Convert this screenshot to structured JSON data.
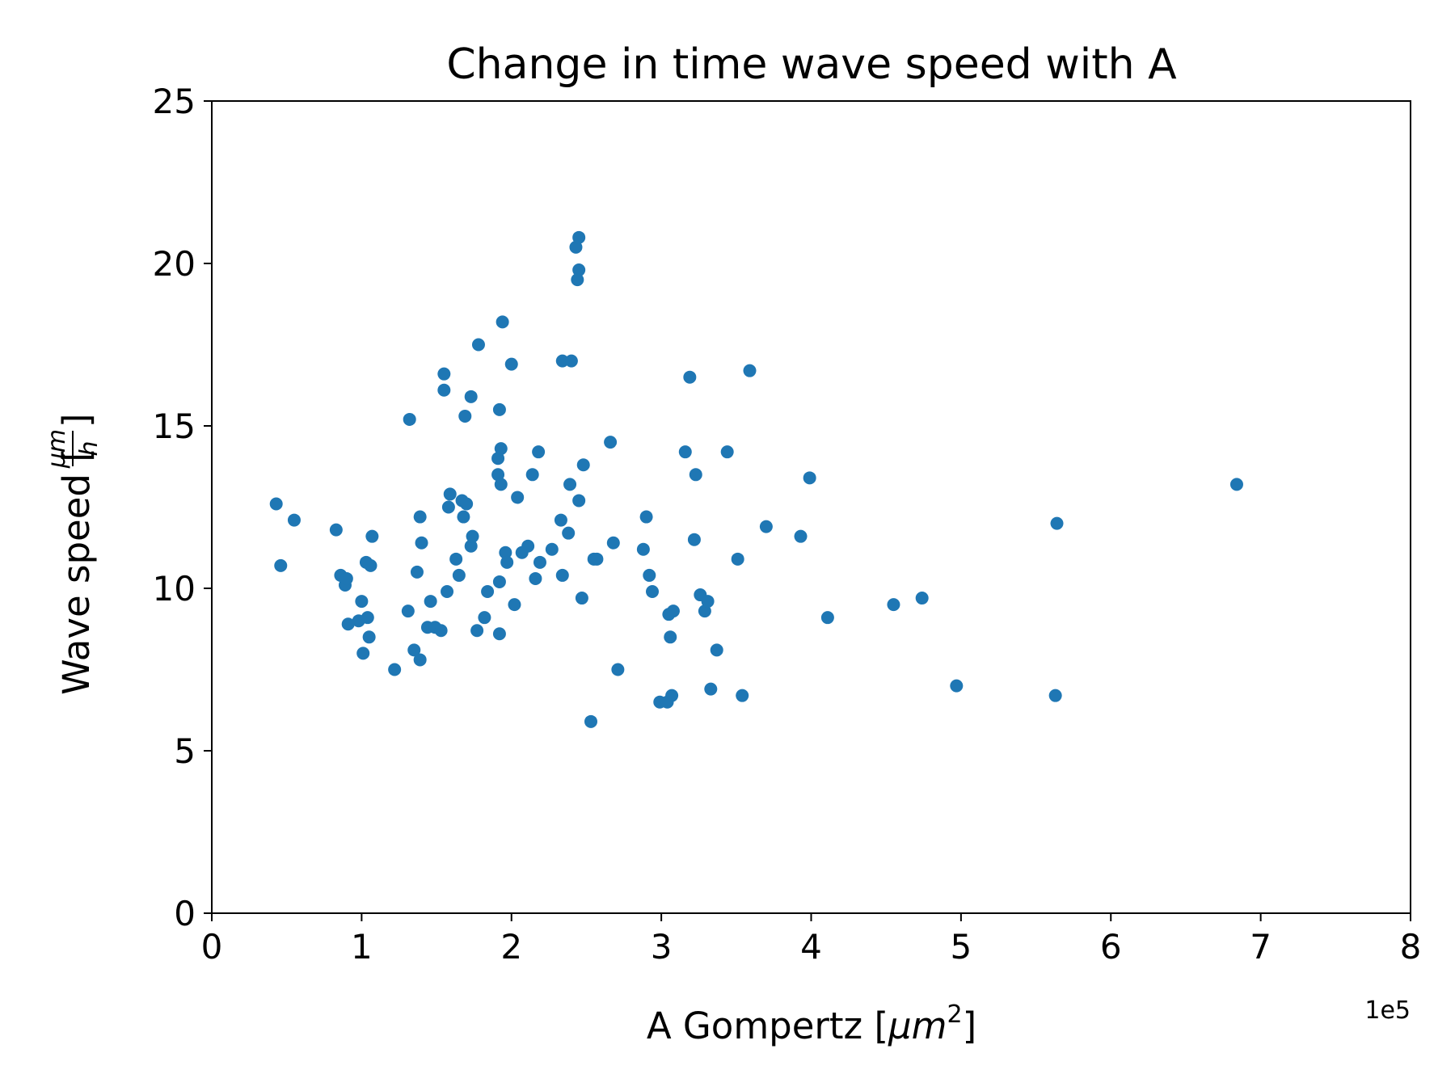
{
  "chart_data": {
    "type": "scatter",
    "title": "Change in time wave speed with A",
    "xlabel": "A Gompertz [μm²]",
    "ylabel": "Wave speed [μm/h]",
    "x_offset_label": "1e5",
    "xlim": [
      0,
      800000
    ],
    "ylim": [
      0,
      25
    ],
    "xticks": [
      0,
      100000,
      200000,
      300000,
      400000,
      500000,
      600000,
      700000,
      800000
    ],
    "xtick_labels": [
      "0",
      "1",
      "2",
      "3",
      "4",
      "5",
      "6",
      "7",
      "8"
    ],
    "yticks": [
      0,
      5,
      10,
      15,
      20,
      25
    ],
    "ytick_labels": [
      "0",
      "5",
      "10",
      "15",
      "20",
      "25"
    ],
    "grid": false,
    "color": "#1f77b4",
    "series": [
      {
        "points": [
          [
            43000,
            12.6
          ],
          [
            46000,
            10.7
          ],
          [
            55000,
            12.1
          ],
          [
            83000,
            11.8
          ],
          [
            86000,
            10.4
          ],
          [
            89000,
            10.1
          ],
          [
            90000,
            10.3
          ],
          [
            91000,
            8.9
          ],
          [
            98000,
            9.0
          ],
          [
            100000,
            9.6
          ],
          [
            101000,
            8.0
          ],
          [
            103000,
            10.8
          ],
          [
            104000,
            9.1
          ],
          [
            105000,
            8.5
          ],
          [
            106000,
            10.7
          ],
          [
            107000,
            11.6
          ],
          [
            122000,
            7.5
          ],
          [
            131000,
            9.3
          ],
          [
            132000,
            15.2
          ],
          [
            135000,
            8.1
          ],
          [
            137000,
            10.5
          ],
          [
            139000,
            7.8
          ],
          [
            139000,
            12.2
          ],
          [
            140000,
            11.4
          ],
          [
            144000,
            8.8
          ],
          [
            146000,
            9.6
          ],
          [
            149000,
            8.8
          ],
          [
            153000,
            8.7
          ],
          [
            155000,
            16.1
          ],
          [
            155000,
            16.6
          ],
          [
            157000,
            9.9
          ],
          [
            158000,
            12.5
          ],
          [
            159000,
            12.9
          ],
          [
            163000,
            10.9
          ],
          [
            165000,
            10.4
          ],
          [
            167000,
            12.7
          ],
          [
            168000,
            12.2
          ],
          [
            169000,
            15.3
          ],
          [
            170000,
            12.6
          ],
          [
            173000,
            15.9
          ],
          [
            173000,
            11.3
          ],
          [
            174000,
            11.6
          ],
          [
            177000,
            8.7
          ],
          [
            178000,
            17.5
          ],
          [
            182000,
            9.1
          ],
          [
            184000,
            9.9
          ],
          [
            191000,
            14.0
          ],
          [
            191000,
            13.5
          ],
          [
            192000,
            8.6
          ],
          [
            192000,
            10.2
          ],
          [
            192000,
            15.5
          ],
          [
            193000,
            14.3
          ],
          [
            193000,
            13.2
          ],
          [
            194000,
            18.2
          ],
          [
            196000,
            11.1
          ],
          [
            197000,
            10.8
          ],
          [
            200000,
            16.9
          ],
          [
            202000,
            9.5
          ],
          [
            204000,
            12.8
          ],
          [
            207000,
            11.1
          ],
          [
            211000,
            11.3
          ],
          [
            214000,
            13.5
          ],
          [
            216000,
            10.3
          ],
          [
            218000,
            14.2
          ],
          [
            219000,
            10.8
          ],
          [
            227000,
            11.2
          ],
          [
            233000,
            12.1
          ],
          [
            234000,
            17.0
          ],
          [
            234000,
            10.4
          ],
          [
            238000,
            11.7
          ],
          [
            239000,
            13.2
          ],
          [
            240000,
            17.0
          ],
          [
            243000,
            20.5
          ],
          [
            244000,
            19.5
          ],
          [
            245000,
            19.8
          ],
          [
            245000,
            20.8
          ],
          [
            245000,
            12.7
          ],
          [
            247000,
            9.7
          ],
          [
            248000,
            13.8
          ],
          [
            253000,
            5.9
          ],
          [
            255000,
            10.9
          ],
          [
            257000,
            10.9
          ],
          [
            266000,
            14.5
          ],
          [
            268000,
            11.4
          ],
          [
            271000,
            7.5
          ],
          [
            288000,
            11.2
          ],
          [
            290000,
            12.2
          ],
          [
            292000,
            10.4
          ],
          [
            294000,
            9.9
          ],
          [
            299000,
            6.5
          ],
          [
            304000,
            6.5
          ],
          [
            305000,
            9.2
          ],
          [
            306000,
            8.5
          ],
          [
            307000,
            6.7
          ],
          [
            308000,
            9.3
          ],
          [
            316000,
            14.2
          ],
          [
            319000,
            16.5
          ],
          [
            322000,
            11.5
          ],
          [
            323000,
            13.5
          ],
          [
            326000,
            9.8
          ],
          [
            329000,
            9.3
          ],
          [
            331000,
            9.6
          ],
          [
            333000,
            6.9
          ],
          [
            337000,
            8.1
          ],
          [
            344000,
            14.2
          ],
          [
            351000,
            10.9
          ],
          [
            354000,
            6.7
          ],
          [
            359000,
            16.7
          ],
          [
            370000,
            11.9
          ],
          [
            393000,
            11.6
          ],
          [
            399000,
            13.4
          ],
          [
            411000,
            9.1
          ],
          [
            455000,
            9.5
          ],
          [
            474000,
            9.7
          ],
          [
            497000,
            7.0
          ],
          [
            563000,
            6.7
          ],
          [
            564000,
            12.0
          ],
          [
            684000,
            13.2
          ]
        ]
      }
    ]
  }
}
